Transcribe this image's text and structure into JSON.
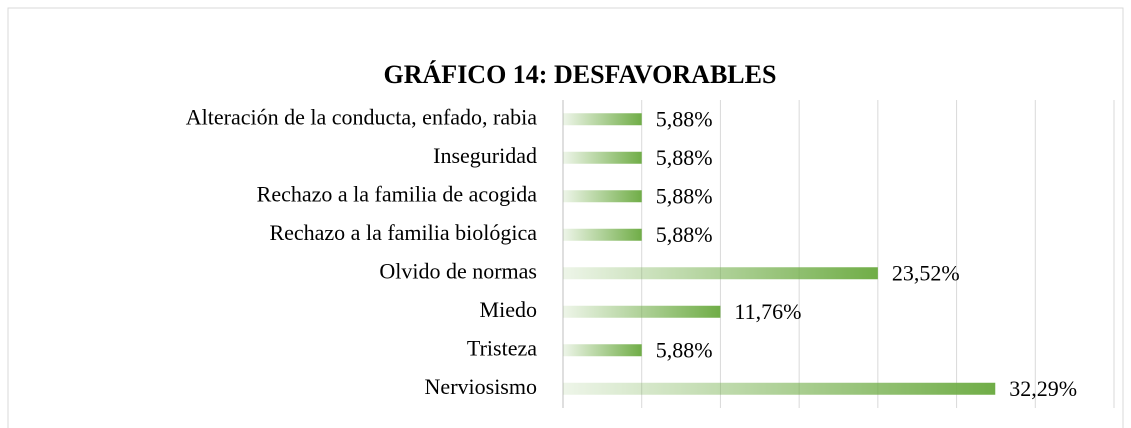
{
  "chart_data": {
    "type": "barh",
    "title": "GRÁFICO 14: DESFAVORABLES",
    "categories": [
      "Alteración de la conducta, enfado, rabia",
      "Inseguridad",
      "Rechazo a la familia de acogida",
      "Rechazo a la familia biológica",
      "Olvido de normas",
      "Miedo",
      "Tristeza",
      "Nerviosismo"
    ],
    "values": [
      5.88,
      5.88,
      5.88,
      5.88,
      23.52,
      11.76,
      5.88,
      32.29
    ],
    "value_labels": [
      "5,88%",
      "5,88%",
      "5,88%",
      "5,88%",
      "23,52%",
      "11,76%",
      "5,88%",
      "32,29%"
    ],
    "color": "#70ad47",
    "xlim": [
      0,
      41.16
    ],
    "xticks": [
      0,
      5.88,
      11.76,
      17.64,
      23.52,
      29.4,
      35.28,
      41.16
    ],
    "grid": true
  }
}
